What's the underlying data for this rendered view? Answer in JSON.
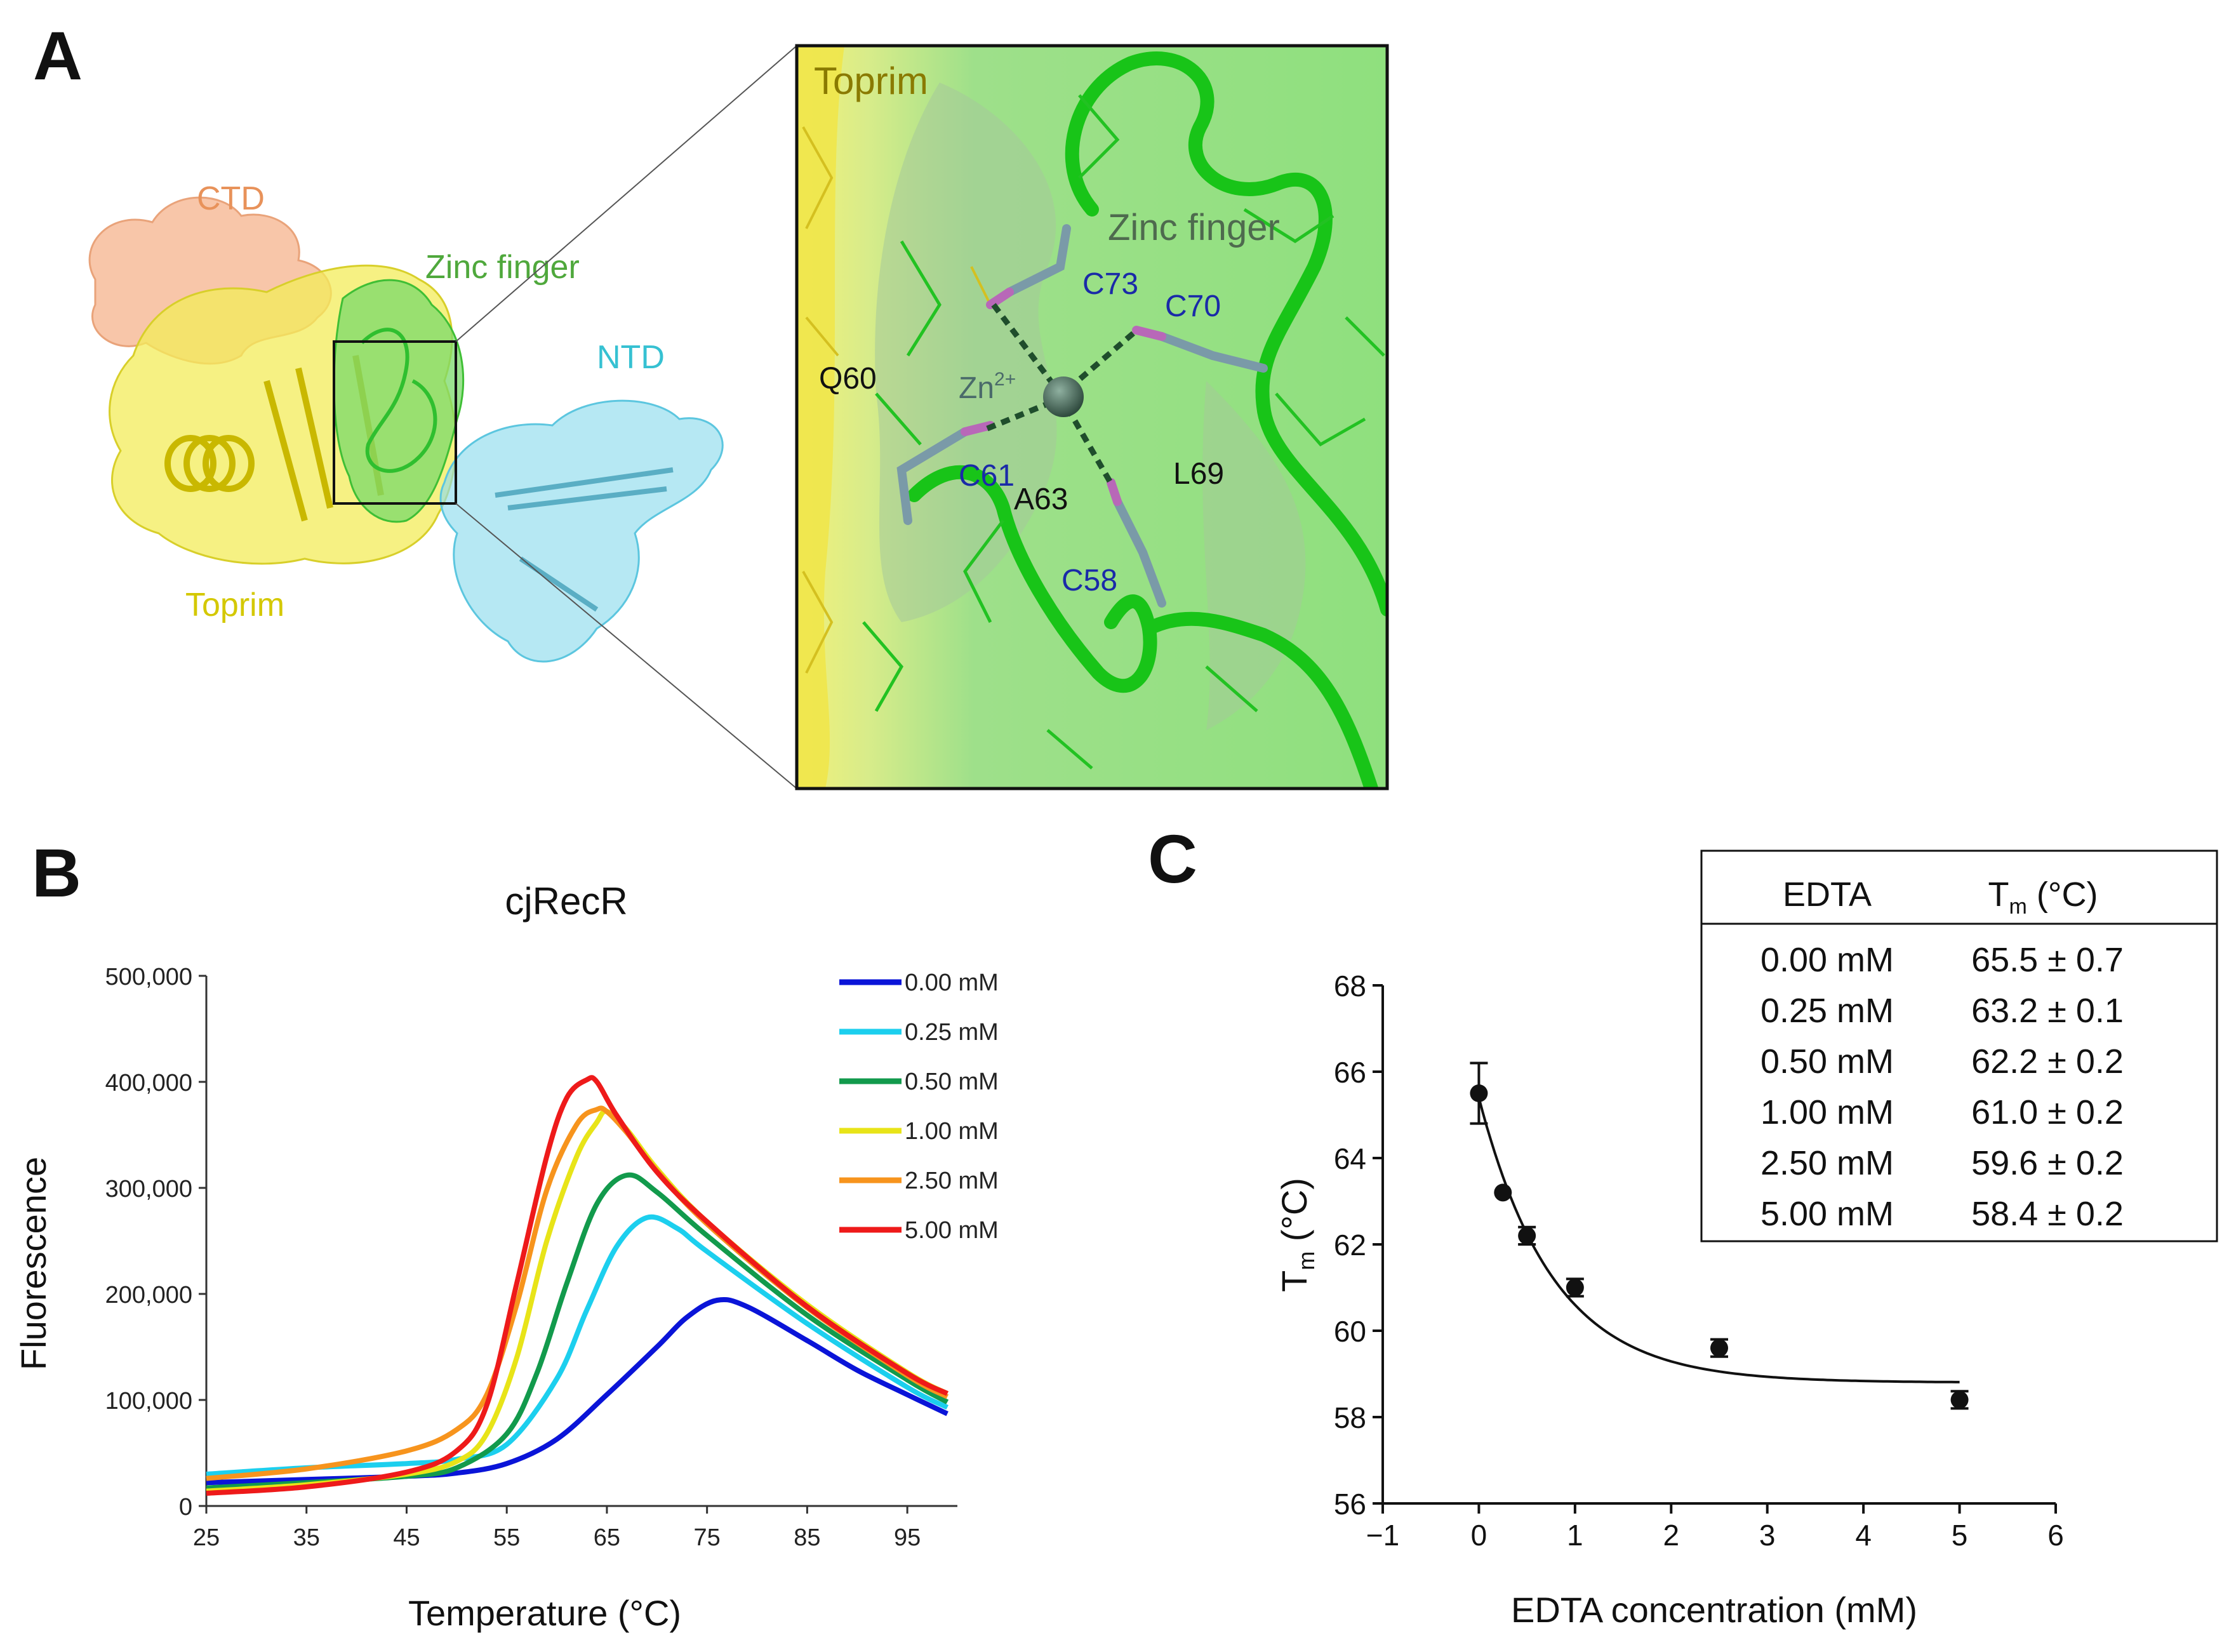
{
  "panels": {
    "a": {
      "letter": "A",
      "overview": {
        "ctd_label": "CTD",
        "zinc_finger_label": "Zinc finger",
        "ntd_label": "NTD",
        "toprim_label": "Toprim"
      },
      "zoom": {
        "toprim_label": "Toprim",
        "zinc_finger_label": "Zinc finger",
        "zn_label": "Zn",
        "zn_charge": "2+",
        "residues": {
          "c73": "C73",
          "c70": "C70",
          "q60": "Q60",
          "c61": "C61",
          "a63": "A63",
          "l69": "L69",
          "c58": "C58"
        }
      },
      "colors": {
        "ctd": "#f0a070",
        "toprim": "#e8e000",
        "zinc_finger": "#22cc22",
        "ntd": "#7fd8e8",
        "cys_label": "#1a2aa8",
        "zn": "#4a6a5a"
      }
    },
    "b": {
      "letter": "B"
    },
    "c": {
      "letter": "C"
    }
  },
  "chart_data": [
    {
      "type": "line",
      "panel": "B",
      "title": "cjRecR",
      "xlabel": "Temperature (°C)",
      "ylabel": "Fluorescence",
      "xlim": [
        25,
        100
      ],
      "ylim": [
        0,
        500000
      ],
      "x_ticks": [
        25,
        35,
        45,
        55,
        65,
        75,
        85,
        95
      ],
      "y_ticks": [
        0,
        100000,
        200000,
        300000,
        400000,
        500000
      ],
      "y_tick_labels": [
        "0",
        "100,000",
        "200,000",
        "300,000",
        "400,000",
        "500,000"
      ],
      "legend_position": "top-right",
      "series": [
        {
          "name": "0.00 mM",
          "color": "#0a14d8",
          "x": [
            25,
            35,
            45,
            50,
            55,
            60,
            65,
            70,
            73,
            76,
            79,
            85,
            90,
            95,
            99
          ],
          "y": [
            22000,
            25000,
            28000,
            31000,
            40000,
            63000,
            105000,
            150000,
            178000,
            194000,
            188000,
            156000,
            128000,
            105000,
            87000
          ]
        },
        {
          "name": "0.25 mM",
          "color": "#1ccfee",
          "x": [
            25,
            35,
            45,
            50,
            55,
            60,
            63,
            66,
            69,
            72,
            75,
            85,
            95,
            99
          ],
          "y": [
            30000,
            36000,
            40000,
            44000,
            58000,
            120000,
            185000,
            245000,
            272000,
            262000,
            240000,
            172000,
            112000,
            93000
          ]
        },
        {
          "name": "0.50 mM",
          "color": "#129a4c",
          "x": [
            25,
            35,
            45,
            50,
            55,
            58,
            61,
            64,
            67,
            70,
            75,
            85,
            95,
            99
          ],
          "y": [
            17000,
            22000,
            28000,
            36000,
            68000,
            125000,
            210000,
            285000,
            312000,
            296000,
            255000,
            180000,
            119000,
            98000
          ]
        },
        {
          "name": "1.00 mM",
          "color": "#e8e418",
          "x": [
            25,
            35,
            45,
            50,
            53,
            56,
            59,
            62,
            64,
            65,
            67,
            70,
            75,
            85,
            95,
            99
          ],
          "y": [
            14000,
            20000,
            30000,
            42000,
            68000,
            140000,
            250000,
            330000,
            362000,
            372000,
            355000,
            318000,
            268000,
            190000,
            126000,
            106000
          ]
        },
        {
          "name": "2.50 mM",
          "color": "#f7941d",
          "x": [
            25,
            35,
            45,
            50,
            53,
            56,
            59,
            62,
            64,
            65,
            67,
            70,
            75,
            85,
            95,
            99
          ],
          "y": [
            26000,
            35000,
            52000,
            72000,
            105000,
            190000,
            298000,
            360000,
            374000,
            372000,
            352000,
            316000,
            266000,
            187000,
            123000,
            103000
          ]
        },
        {
          "name": "5.00 mM",
          "color": "#ee1a1a",
          "x": [
            25,
            35,
            45,
            50,
            53,
            56,
            59,
            61,
            63,
            64,
            66,
            70,
            75,
            85,
            95,
            99
          ],
          "y": [
            12000,
            18000,
            32000,
            52000,
            95000,
            210000,
            330000,
            385000,
            402000,
            400000,
            368000,
            315000,
            268000,
            188000,
            125000,
            106000
          ]
        }
      ]
    },
    {
      "type": "scatter",
      "panel": "C",
      "xlabel": "EDTA concentration (mM)",
      "ylabel_main": "T",
      "ylabel_sub": "m",
      "ylabel_unit": " (°C)",
      "xlim": [
        -1,
        6
      ],
      "ylim": [
        56,
        68
      ],
      "x_ticks": [
        -1,
        0,
        1,
        2,
        3,
        4,
        5,
        6
      ],
      "x_tick_labels": [
        "−1",
        "0",
        "1",
        "2",
        "3",
        "4",
        "5",
        "6"
      ],
      "y_ticks": [
        56,
        58,
        60,
        62,
        64,
        66,
        68
      ],
      "points": [
        {
          "x": 0.0,
          "y": 65.5,
          "err": 0.7
        },
        {
          "x": 0.25,
          "y": 63.2,
          "err": 0.1
        },
        {
          "x": 0.5,
          "y": 62.2,
          "err": 0.2
        },
        {
          "x": 1.0,
          "y": 61.0,
          "err": 0.2
        },
        {
          "x": 2.5,
          "y": 59.6,
          "err": 0.2
        },
        {
          "x": 5.0,
          "y": 58.4,
          "err": 0.2
        }
      ],
      "fit": {
        "model": "exponential decay",
        "y0": 65.4,
        "plateau": 58.8,
        "k": 1.3,
        "x_range": [
          0,
          5
        ]
      },
      "table": {
        "header_edta": "EDTA",
        "header_tm_main": "T",
        "header_tm_sub": "m",
        "header_tm_unit": " (°C)",
        "rows": [
          {
            "edta": "0.00 mM",
            "tm": "65.5 ± 0.7"
          },
          {
            "edta": "0.25 mM",
            "tm": "63.2 ± 0.1"
          },
          {
            "edta": "0.50 mM",
            "tm": "62.2 ± 0.2"
          },
          {
            "edta": "1.00 mM",
            "tm": "61.0 ± 0.2"
          },
          {
            "edta": "2.50 mM",
            "tm": "59.6 ± 0.2"
          },
          {
            "edta": "5.00 mM",
            "tm": "58.4 ± 0.2"
          }
        ]
      }
    }
  ]
}
